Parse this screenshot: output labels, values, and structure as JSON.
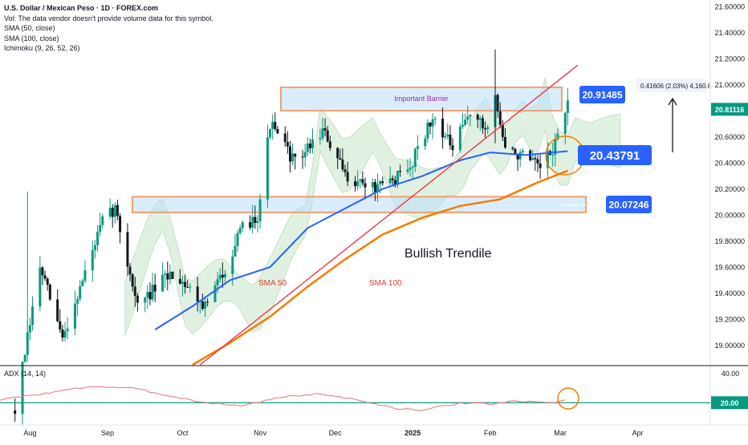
{
  "header": {
    "symbol_line": "U.S. Dollar / Mexican Peso · 1D · FOREX.com",
    "volume_note": "Vol: The data vendor doesn't provide volume data for this symbol.",
    "studies": [
      "SMA (50, close)",
      "SMA (100, close)",
      "Ichimoku (9, 26, 52, 26)"
    ]
  },
  "adx_panel": {
    "label": "ADX (14, 14)",
    "ticks": [
      "40.00",
      "20.00"
    ],
    "threshold": 20
  },
  "colors": {
    "up": "#089981",
    "down": "#131722",
    "sma50": "#2962ff",
    "sma100": "#f57c00",
    "trendline": "#f23645",
    "cloud": "#c8e6c9",
    "zone_fill": "#bbdefb",
    "zone_border": "#f0a070",
    "price_label": "#2962ff",
    "last_price": "#089981",
    "adx_line": "#e57373",
    "adx_threshold": "#089981"
  },
  "chart_data": {
    "type": "candlestick",
    "title": "U.S. Dollar / Mexican Peso · 1D · FOREX.com",
    "y_axis": {
      "ticks": [
        "21.60000",
        "21.40000",
        "21.20000",
        "21.00000",
        "20.80000",
        "20.60000",
        "20.40000",
        "20.20000",
        "20.00000",
        "19.80000",
        "19.60000",
        "19.40000",
        "19.20000",
        "19.00000"
      ],
      "range": [
        18.85,
        21.65
      ]
    },
    "x_axis": {
      "labels": [
        "Aug",
        "Sep",
        "Oct",
        "Nov",
        "Dec",
        "2025",
        "Feb",
        "Mar",
        "Apr"
      ],
      "label_dates": [
        "2024-08-01",
        "2024-09-01",
        "2024-10-01",
        "2024-11-01",
        "2024-12-01",
        "2025-01-01",
        "2025-02-01",
        "2025-03-01",
        "2025-04-01"
      ],
      "range": [
        "2024-07-20",
        "2025-04-30"
      ]
    },
    "price_path": [
      [
        "2024-07-26",
        18.5
      ],
      [
        "2024-08-05",
        19.6
      ],
      [
        "2024-08-14",
        19.05
      ],
      [
        "2024-08-30",
        19.95
      ],
      [
        "2024-09-04",
        20.05
      ],
      [
        "2024-09-13",
        19.3
      ],
      [
        "2024-09-26",
        19.55
      ],
      [
        "2024-10-01",
        19.5
      ],
      [
        "2024-10-10",
        19.3
      ],
      [
        "2024-10-17",
        19.55
      ],
      [
        "2024-10-25",
        19.9
      ],
      [
        "2024-10-31",
        20.0
      ],
      [
        "2024-11-05",
        20.7
      ],
      [
        "2024-11-15",
        20.4
      ],
      [
        "2024-11-26",
        20.65
      ],
      [
        "2024-12-05",
        20.3
      ],
      [
        "2024-12-18",
        20.2
      ],
      [
        "2024-12-31",
        20.35
      ],
      [
        "2025-01-03",
        20.55
      ],
      [
        "2025-01-10",
        20.75
      ],
      [
        "2025-01-17",
        20.5
      ],
      [
        "2025-01-24",
        20.8
      ],
      [
        "2025-01-30",
        20.65
      ],
      [
        "2025-02-03",
        20.9
      ],
      [
        "2025-02-07",
        20.5
      ],
      [
        "2025-02-14",
        20.45
      ],
      [
        "2025-02-21",
        20.35
      ],
      [
        "2025-02-26",
        20.5
      ],
      [
        "2025-03-04",
        20.85
      ]
    ],
    "last_price": 20.81116,
    "series": [
      {
        "name": "SMA (50, close)",
        "points": [
          [
            "2024-09-20",
            19.12
          ],
          [
            "2024-10-05",
            19.3
          ],
          [
            "2024-10-20",
            19.5
          ],
          [
            "2024-11-05",
            19.6
          ],
          [
            "2024-11-20",
            19.9
          ],
          [
            "2024-12-05",
            20.05
          ],
          [
            "2024-12-20",
            20.2
          ],
          [
            "2025-01-05",
            20.3
          ],
          [
            "2025-01-20",
            20.42
          ],
          [
            "2025-02-01",
            20.48
          ],
          [
            "2025-02-15",
            20.46
          ],
          [
            "2025-03-04",
            20.49
          ]
        ]
      },
      {
        "name": "SMA (100, close)",
        "points": [
          [
            "2024-10-05",
            18.85
          ],
          [
            "2024-10-20",
            19.02
          ],
          [
            "2024-11-05",
            19.22
          ],
          [
            "2024-11-20",
            19.45
          ],
          [
            "2024-12-05",
            19.66
          ],
          [
            "2024-12-20",
            19.85
          ],
          [
            "2025-01-05",
            19.98
          ],
          [
            "2025-01-20",
            20.07
          ],
          [
            "2025-02-05",
            20.12
          ],
          [
            "2025-02-20",
            20.25
          ],
          [
            "2025-03-04",
            20.34
          ]
        ]
      },
      {
        "name": "Bullish Trendile",
        "points": [
          [
            "2024-10-08",
            18.85
          ],
          [
            "2025-03-08",
            21.15
          ]
        ]
      }
    ],
    "zones": [
      {
        "label": "Important Barrier",
        "from": 20.8,
        "to": 20.98
      },
      {
        "label": "",
        "from": 20.02,
        "to": 20.14
      }
    ],
    "price_labels": [
      "20.91485",
      "20.43791",
      "20.07246"
    ],
    "annotations": [
      "Important Barrier",
      "Bullish Trendile",
      "SMA 50",
      "SMA 100",
      "0.41606 (2.03%) 4,160.6"
    ],
    "adx_values": [
      [
        "2024-07-20",
        22
      ],
      [
        "2024-08-10",
        27
      ],
      [
        "2024-08-25",
        31
      ],
      [
        "2024-09-10",
        30
      ],
      [
        "2024-09-25",
        25
      ],
      [
        "2024-10-10",
        20
      ],
      [
        "2024-10-25",
        18
      ],
      [
        "2024-11-10",
        24
      ],
      [
        "2024-11-25",
        26
      ],
      [
        "2024-12-10",
        22
      ],
      [
        "2024-12-25",
        16
      ],
      [
        "2025-01-05",
        15
      ],
      [
        "2025-01-20",
        20
      ],
      [
        "2025-02-01",
        19
      ],
      [
        "2025-02-10",
        21
      ],
      [
        "2025-02-25",
        20
      ],
      [
        "2025-03-04",
        22
      ]
    ]
  }
}
